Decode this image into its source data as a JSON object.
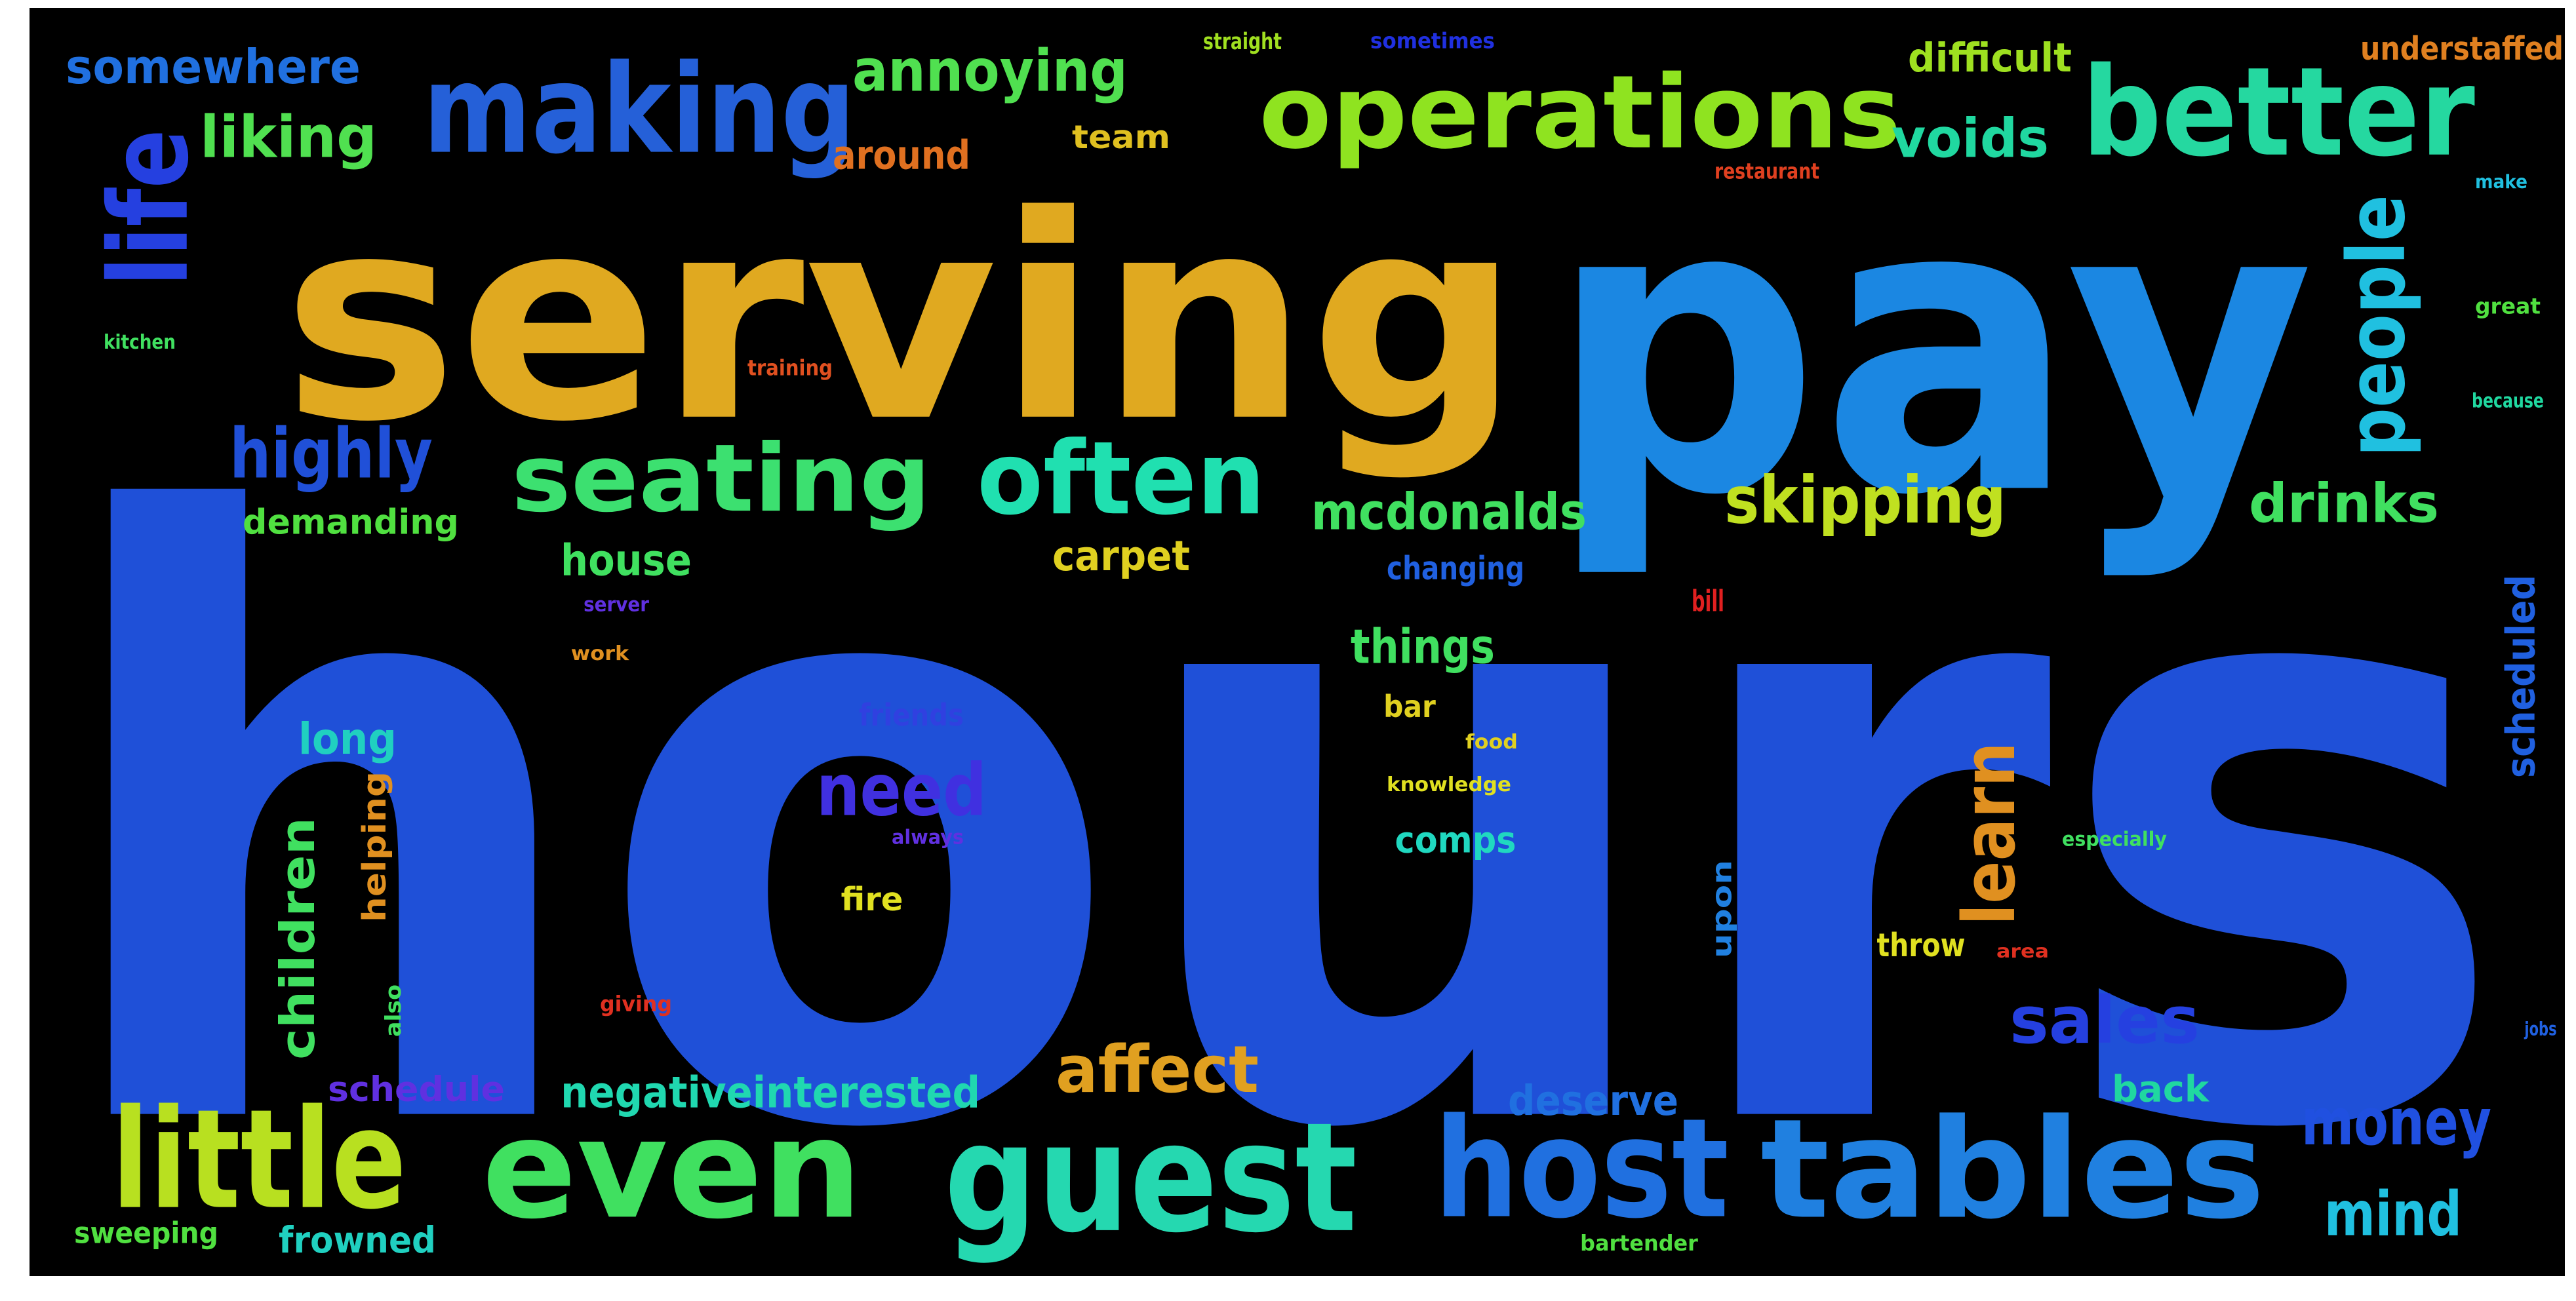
{
  "wordcloud": {
    "background": "#000000",
    "words": [
      {
        "id": "hours",
        "text": "hours",
        "color": "#1F50D8"
      },
      {
        "id": "pay",
        "text": "pay",
        "color": "#1B87E2"
      },
      {
        "id": "serving",
        "text": "serving",
        "color": "#E0A920"
      },
      {
        "id": "operations",
        "text": "operations",
        "color": "#8FE320"
      },
      {
        "id": "making",
        "text": "making",
        "color": "#2560D8"
      },
      {
        "id": "better",
        "text": "better",
        "color": "#25D8A0"
      },
      {
        "id": "life",
        "text": "life",
        "color": "#2540E0"
      },
      {
        "id": "seating",
        "text": "seating",
        "color": "#3CE070"
      },
      {
        "id": "often",
        "text": "often",
        "color": "#20E0B0"
      },
      {
        "id": "guest",
        "text": "guest",
        "color": "#25D8B0"
      },
      {
        "id": "even",
        "text": "even",
        "color": "#40E060"
      },
      {
        "id": "little",
        "text": "little",
        "color": "#B8E020"
      },
      {
        "id": "host",
        "text": "host",
        "color": "#2070E0"
      },
      {
        "id": "tables",
        "text": "tables",
        "color": "#2080E0"
      },
      {
        "id": "people",
        "text": "people",
        "color": "#20C0E0"
      },
      {
        "id": "highly",
        "text": "highly",
        "color": "#2050D8"
      },
      {
        "id": "annoying",
        "text": "annoying",
        "color": "#50E050"
      },
      {
        "id": "liking",
        "text": "liking",
        "color": "#50E050"
      },
      {
        "id": "somewhere",
        "text": "somewhere",
        "color": "#2070E0"
      },
      {
        "id": "voids",
        "text": "voids",
        "color": "#20D8A0"
      },
      {
        "id": "difficult",
        "text": "difficult",
        "color": "#9EE020"
      },
      {
        "id": "understaffed",
        "text": "understaffed",
        "color": "#E08020"
      },
      {
        "id": "around",
        "text": "around",
        "color": "#E07020"
      },
      {
        "id": "team",
        "text": "team",
        "color": "#E0C020"
      },
      {
        "id": "skipping",
        "text": "skipping",
        "color": "#C0E020"
      },
      {
        "id": "mcdonalds",
        "text": "mcdonalds",
        "color": "#40E060"
      },
      {
        "id": "drinks",
        "text": "drinks",
        "color": "#40E060"
      },
      {
        "id": "demanding",
        "text": "demanding",
        "color": "#50E040"
      },
      {
        "id": "house",
        "text": "house",
        "color": "#40E060"
      },
      {
        "id": "carpet",
        "text": "carpet",
        "color": "#E0D020"
      },
      {
        "id": "changing",
        "text": "changing",
        "color": "#2060E0"
      },
      {
        "id": "things",
        "text": "things",
        "color": "#40E060"
      },
      {
        "id": "long",
        "text": "long",
        "color": "#20D0C0"
      },
      {
        "id": "need",
        "text": "need",
        "color": "#4030E0"
      },
      {
        "id": "learn",
        "text": "learn",
        "color": "#E09020"
      },
      {
        "id": "helping",
        "text": "helping",
        "color": "#E09020"
      },
      {
        "id": "children",
        "text": "children",
        "color": "#40E060"
      },
      {
        "id": "comps",
        "text": "comps",
        "color": "#20D8C0"
      },
      {
        "id": "scheduled",
        "text": "scheduled",
        "color": "#2060E0"
      },
      {
        "id": "sales",
        "text": "sales",
        "color": "#2540E0"
      },
      {
        "id": "affect",
        "text": "affect",
        "color": "#E0A020"
      },
      {
        "id": "money",
        "text": "money",
        "color": "#2050E0"
      },
      {
        "id": "mind",
        "text": "mind",
        "color": "#20C0E0"
      },
      {
        "id": "negativeinterested",
        "text": "negativeinterested",
        "color": "#20D8B0"
      },
      {
        "id": "schedule",
        "text": "schedule",
        "color": "#6030E0"
      },
      {
        "id": "deserve",
        "text": "deserve",
        "color": "#2070E0"
      },
      {
        "id": "back",
        "text": "back",
        "color": "#20D8A0"
      },
      {
        "id": "frowned",
        "text": "frowned",
        "color": "#20D0C0"
      },
      {
        "id": "sweeping",
        "text": "sweeping",
        "color": "#50E040"
      },
      {
        "id": "friends",
        "text": "friends",
        "color": "#3040E0"
      },
      {
        "id": "fire",
        "text": "fire",
        "color": "#E0E020"
      },
      {
        "id": "bar",
        "text": "bar",
        "color": "#E0D020"
      },
      {
        "id": "throw",
        "text": "throw",
        "color": "#E0E020"
      },
      {
        "id": "upon",
        "text": "upon",
        "color": "#2080E0"
      },
      {
        "id": "bill",
        "text": "bill",
        "color": "#E02020"
      },
      {
        "id": "straight",
        "text": "straight",
        "color": "#A0E020"
      },
      {
        "id": "restaurant",
        "text": "restaurant",
        "color": "#E04020"
      },
      {
        "id": "training",
        "text": "training",
        "color": "#E05020"
      },
      {
        "id": "great",
        "text": "great",
        "color": "#50E040"
      },
      {
        "id": "kitchen",
        "text": "kitchen",
        "color": "#40E060"
      },
      {
        "id": "because",
        "text": "because",
        "color": "#20D8A0"
      },
      {
        "id": "server",
        "text": "server",
        "color": "#6030E0"
      },
      {
        "id": "work",
        "text": "work",
        "color": "#E09020"
      },
      {
        "id": "always",
        "text": "always",
        "color": "#6030E0"
      },
      {
        "id": "food",
        "text": "food",
        "color": "#E0D020"
      },
      {
        "id": "knowledge",
        "text": "knowledge",
        "color": "#E0E020"
      },
      {
        "id": "especially",
        "text": "especially",
        "color": "#40E060"
      },
      {
        "id": "giving",
        "text": "giving",
        "color": "#E03020"
      },
      {
        "id": "area",
        "text": "area",
        "color": "#E03020"
      },
      {
        "id": "bartender",
        "text": "bartender",
        "color": "#50E040"
      },
      {
        "id": "jobs",
        "text": "jobs",
        "color": "#2060E0"
      },
      {
        "id": "make",
        "text": "make",
        "color": "#20C0E0"
      },
      {
        "id": "also",
        "text": "also",
        "color": "#40E060"
      },
      {
        "id": "sometimes",
        "text": "sometimes",
        "color": "#2030E0"
      }
    ]
  }
}
